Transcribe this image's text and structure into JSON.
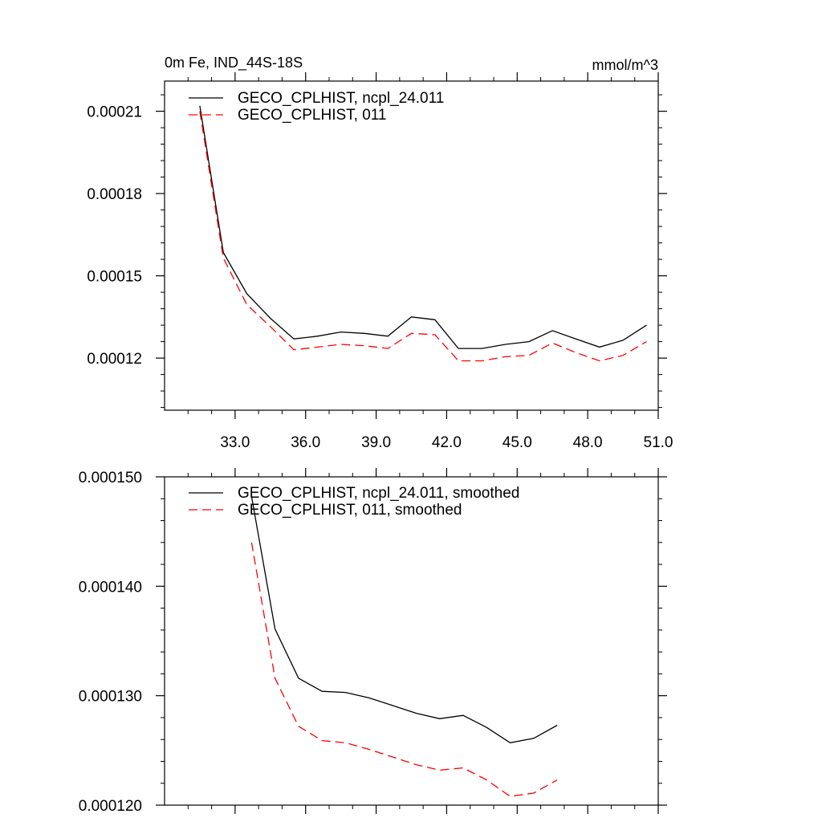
{
  "chart_data": [
    {
      "type": "line",
      "title_left": "0m Fe, IND_44S-18S",
      "title_right": "mmol/m^3",
      "xlim": [
        30.0,
        51.0
      ],
      "ylim": [
        0.000101,
        0.000221
      ],
      "x_ticks": [
        33.0,
        36.0,
        39.0,
        42.0,
        45.0,
        48.0,
        51.0
      ],
      "x_tick_labels": [
        "33.0",
        "36.0",
        "39.0",
        "42.0",
        "45.0",
        "48.0",
        "51.0"
      ],
      "y_ticks": [
        0.00012,
        0.00015,
        0.00018,
        0.00021
      ],
      "y_tick_labels": [
        "0.00012",
        "0.00015",
        "0.00018",
        "0.00021"
      ],
      "x": [
        31.5,
        32.5,
        33.5,
        34.5,
        35.5,
        36.5,
        37.5,
        38.5,
        39.5,
        40.5,
        41.5,
        42.5,
        43.5,
        44.5,
        45.5,
        46.5,
        47.5,
        48.5,
        49.5,
        50.5
      ],
      "series": [
        {
          "name": "GECO_CPLHIST, ncpl_24.011",
          "color": "#000000",
          "dash": "solid",
          "values": [
            0.000212,
            0.0001585,
            0.0001435,
            0.0001345,
            0.000127,
            0.000128,
            0.0001295,
            0.000129,
            0.000128,
            0.000135,
            0.000134,
            0.0001235,
            0.0001235,
            0.000125,
            0.000126,
            0.00013,
            0.000127,
            0.000124,
            0.0001265,
            0.000132
          ]
        },
        {
          "name": "GECO_CPLHIST, 011",
          "color": "#ff0000",
          "dash": "dashed",
          "values": [
            0.00021,
            0.0001565,
            0.0001395,
            0.0001315,
            0.000123,
            0.000124,
            0.000125,
            0.0001245,
            0.0001235,
            0.000129,
            0.0001285,
            0.000119,
            0.000119,
            0.0001205,
            0.000121,
            0.0001255,
            0.000122,
            0.000119,
            0.000121,
            0.000126
          ]
        }
      ]
    },
    {
      "type": "line",
      "xlim": [
        30.0,
        51.0
      ],
      "ylim": [
        0.00012,
        0.00015
      ],
      "x_ticks": [
        33.0,
        36.0,
        39.0,
        42.0,
        45.0,
        48.0,
        51.0
      ],
      "y_ticks": [
        0.00012,
        0.00013,
        0.00014,
        0.00015
      ],
      "y_tick_labels": [
        "0.000120",
        "0.000130",
        "0.000140",
        "0.000150"
      ],
      "series": [
        {
          "name": "GECO_CPLHIST, ncpl_24.011, smoothed",
          "color": "#000000",
          "dash": "solid",
          "x": [
            33.7,
            34.7,
            35.7,
            36.7,
            37.7,
            38.7,
            39.7,
            40.7,
            41.7,
            42.7,
            43.7,
            44.7,
            45.7,
            46.7
          ],
          "values": [
            0.0001482,
            0.0001361,
            0.0001316,
            0.0001304,
            0.0001303,
            0.0001298,
            0.0001291,
            0.0001284,
            0.0001279,
            0.0001282,
            0.0001271,
            0.0001257,
            0.0001261,
            0.0001273
          ]
        },
        {
          "name": "GECO_CPLHIST, 011, smoothed",
          "color": "#ff0000",
          "dash": "dashed",
          "x": [
            33.7,
            34.7,
            35.7,
            36.7,
            37.7,
            38.7,
            39.7,
            40.7,
            41.7,
            42.7,
            43.7,
            44.7,
            45.7,
            46.7
          ],
          "values": [
            0.000144,
            0.0001316,
            0.0001272,
            0.0001259,
            0.0001257,
            0.0001251,
            0.0001244,
            0.0001237,
            0.0001232,
            0.0001234,
            0.0001223,
            0.0001208,
            0.0001211,
            0.0001223
          ]
        }
      ]
    }
  ]
}
